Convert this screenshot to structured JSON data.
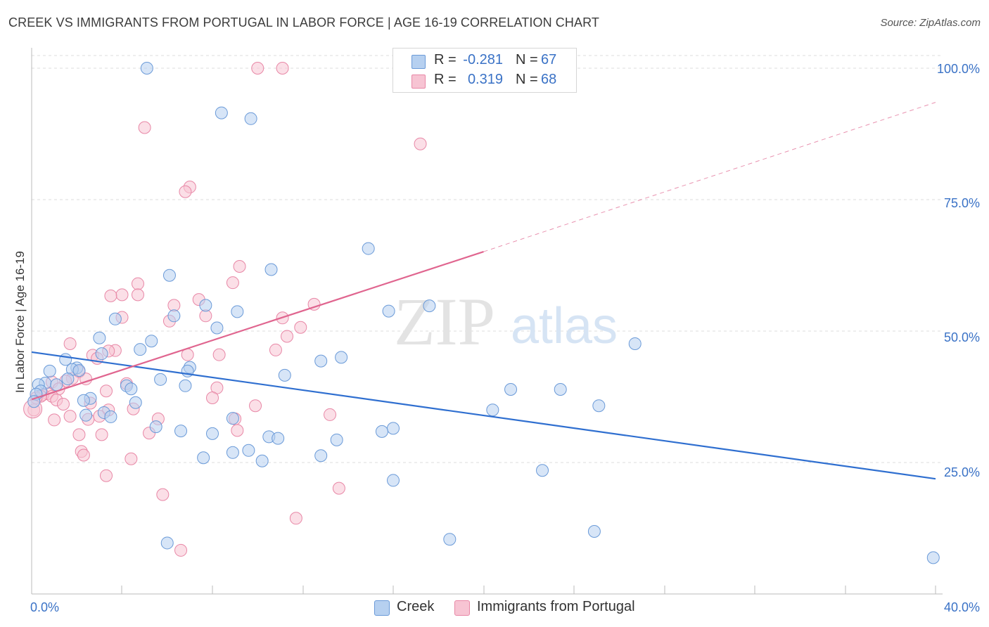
{
  "title": "CREEK VS IMMIGRANTS FROM PORTUGAL IN LABOR FORCE | AGE 16-19 CORRELATION CHART",
  "source": "Source: ZipAtlas.com",
  "watermark": {
    "zip": "ZIP",
    "atlas": "atlas"
  },
  "legend": {
    "rows": [
      {
        "r_label": "R =",
        "r_value": "-0.281",
        "n_label": "N =",
        "n_value": "67"
      },
      {
        "r_label": "R =",
        "r_value": "0.319",
        "n_label": "N =",
        "n_value": "68"
      }
    ]
  },
  "bottom_legend": {
    "creek": "Creek",
    "portugal": "Immigrants from Portugal"
  },
  "colors": {
    "creek_fill": "#b6d0f0",
    "creek_stroke": "#6a9ad8",
    "creek_line": "#2f6fd0",
    "portugal_fill": "#f7c4d3",
    "portugal_stroke": "#e887a6",
    "portugal_line": "#e0658f",
    "tick_label": "#3a72c6",
    "grid": "#dddddd"
  },
  "chart_data": {
    "type": "scatter",
    "title": "CREEK VS IMMIGRANTS FROM PORTUGAL IN LABOR FORCE | AGE 16-19 CORRELATION CHART",
    "xlabel": "",
    "ylabel": "In Labor Force | Age 16-19",
    "xlim": [
      0,
      40
    ],
    "ylim": [
      0,
      100
    ],
    "x_tick_labels": [
      "0.0%",
      "40.0%"
    ],
    "y_ticks": [
      25,
      50,
      75,
      100
    ],
    "y_tick_labels": [
      "25.0%",
      "50.0%",
      "75.0%",
      "100.0%"
    ],
    "grid": true,
    "legend_position": "top-center",
    "series": [
      {
        "name": "Creek",
        "R": -0.281,
        "N": 67,
        "trend": {
          "x": [
            0,
            40
          ],
          "y": [
            46.0,
            21.9
          ]
        },
        "points": [
          [
            5.1,
            100
          ],
          [
            8.4,
            91.5
          ],
          [
            9.7,
            90.4
          ],
          [
            14.9,
            65.7
          ],
          [
            6.1,
            60.6
          ],
          [
            10.6,
            61.7
          ],
          [
            17.6,
            54.8
          ],
          [
            15.8,
            53.8
          ],
          [
            6.3,
            52.9
          ],
          [
            3.7,
            52.3
          ],
          [
            9.1,
            53.7
          ],
          [
            7.7,
            54.9
          ],
          [
            8.2,
            50.6
          ],
          [
            3.0,
            48.7
          ],
          [
            26.7,
            47.6
          ],
          [
            5.3,
            48.1
          ],
          [
            4.8,
            46.5
          ],
          [
            1.5,
            44.6
          ],
          [
            3.1,
            45.7
          ],
          [
            12.8,
            44.3
          ],
          [
            13.7,
            45.0
          ],
          [
            2.0,
            43.0
          ],
          [
            7.0,
            43.1
          ],
          [
            0.8,
            42.4
          ],
          [
            1.8,
            42.7
          ],
          [
            6.9,
            42.4
          ],
          [
            2.1,
            42.5
          ],
          [
            11.2,
            41.6
          ],
          [
            5.7,
            40.8
          ],
          [
            1.6,
            40.9
          ],
          [
            0.6,
            40.1
          ],
          [
            1.1,
            39.8
          ],
          [
            4.2,
            39.6
          ],
          [
            0.3,
            39.8
          ],
          [
            6.8,
            39.6
          ],
          [
            4.4,
            39.0
          ],
          [
            21.2,
            38.9
          ],
          [
            23.4,
            38.9
          ],
          [
            0.4,
            38.6
          ],
          [
            0.2,
            38.0
          ],
          [
            2.6,
            37.2
          ],
          [
            2.3,
            36.8
          ],
          [
            0.1,
            36.6
          ],
          [
            4.6,
            36.4
          ],
          [
            25.1,
            35.8
          ],
          [
            20.4,
            35.0
          ],
          [
            3.2,
            34.5
          ],
          [
            2.4,
            34.0
          ],
          [
            3.5,
            33.7
          ],
          [
            8.9,
            33.4
          ],
          [
            5.5,
            31.8
          ],
          [
            16.0,
            31.5
          ],
          [
            6.6,
            31.0
          ],
          [
            15.5,
            30.9
          ],
          [
            8.0,
            30.5
          ],
          [
            10.5,
            29.9
          ],
          [
            10.9,
            29.6
          ],
          [
            13.5,
            29.3
          ],
          [
            9.6,
            27.3
          ],
          [
            8.9,
            26.9
          ],
          [
            12.8,
            26.3
          ],
          [
            7.6,
            25.9
          ],
          [
            10.2,
            25.3
          ],
          [
            22.6,
            23.5
          ],
          [
            16.0,
            21.6
          ],
          [
            6.0,
            9.7
          ],
          [
            18.5,
            10.4
          ],
          [
            24.9,
            11.9
          ],
          [
            39.9,
            6.9
          ]
        ]
      },
      {
        "name": "Immigrants from Portugal",
        "R": 0.319,
        "N": 68,
        "trend": {
          "x": [
            0,
            20
          ],
          "y": [
            37.0,
            65.1
          ]
        },
        "trend_extended": {
          "x": [
            20,
            40
          ],
          "y": [
            65.1,
            93.5
          ]
        },
        "points": [
          [
            10.0,
            100
          ],
          [
            11.1,
            100
          ],
          [
            5.0,
            88.7
          ],
          [
            17.2,
            85.6
          ],
          [
            7.0,
            77.4
          ],
          [
            6.8,
            76.5
          ],
          [
            9.2,
            62.3
          ],
          [
            8.9,
            59.2
          ],
          [
            4.7,
            59.0
          ],
          [
            4.0,
            56.9
          ],
          [
            3.5,
            56.7
          ],
          [
            4.7,
            56.9
          ],
          [
            7.4,
            56.0
          ],
          [
            12.5,
            55.1
          ],
          [
            6.3,
            54.9
          ],
          [
            7.7,
            52.9
          ],
          [
            11.1,
            52.5
          ],
          [
            6.1,
            51.9
          ],
          [
            11.9,
            50.7
          ],
          [
            4.0,
            52.6
          ],
          [
            11.3,
            49.0
          ],
          [
            1.7,
            47.6
          ],
          [
            10.8,
            46.4
          ],
          [
            3.7,
            46.3
          ],
          [
            8.3,
            45.5
          ],
          [
            6.9,
            45.5
          ],
          [
            2.7,
            45.4
          ],
          [
            2.9,
            44.8
          ],
          [
            3.4,
            46.2
          ],
          [
            2.1,
            42.3
          ],
          [
            1.8,
            41.0
          ],
          [
            2.4,
            40.9
          ],
          [
            1.5,
            40.5
          ],
          [
            0.9,
            40.3
          ],
          [
            4.2,
            40.0
          ],
          [
            8.2,
            39.2
          ],
          [
            1.2,
            39.0
          ],
          [
            3.3,
            38.6
          ],
          [
            0.7,
            38.1
          ],
          [
            0.5,
            37.9
          ],
          [
            0.9,
            37.6
          ],
          [
            0.4,
            37.6
          ],
          [
            0.2,
            37.3
          ],
          [
            8.0,
            37.3
          ],
          [
            1.1,
            36.9
          ],
          [
            1.4,
            36.1
          ],
          [
            2.6,
            36.3
          ],
          [
            9.9,
            35.8
          ],
          [
            0.1,
            35.0
          ],
          [
            4.5,
            35.2
          ],
          [
            3.4,
            35.0
          ],
          [
            13.2,
            34.1
          ],
          [
            5.6,
            33.3
          ],
          [
            3.0,
            33.8
          ],
          [
            1.7,
            33.8
          ],
          [
            1.0,
            33.1
          ],
          [
            2.5,
            33.2
          ],
          [
            9.0,
            33.3
          ],
          [
            9.1,
            31.1
          ],
          [
            5.2,
            30.6
          ],
          [
            2.1,
            30.3
          ],
          [
            3.1,
            30.3
          ],
          [
            2.2,
            27.1
          ],
          [
            2.3,
            26.4
          ],
          [
            4.4,
            25.7
          ],
          [
            3.3,
            22.5
          ],
          [
            13.6,
            20.1
          ],
          [
            5.8,
            18.9
          ],
          [
            11.7,
            14.4
          ],
          [
            6.6,
            8.3
          ]
        ]
      }
    ]
  }
}
